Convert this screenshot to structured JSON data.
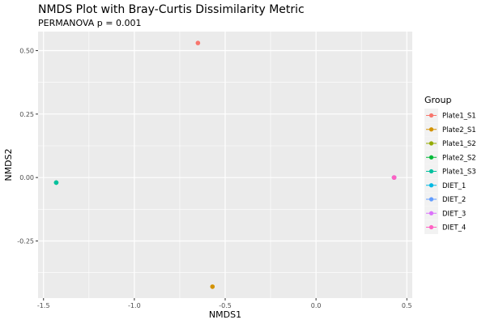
{
  "chart_data": {
    "type": "scatter",
    "title": "NMDS Plot with Bray-Curtis Dissimilarity Metric",
    "subtitle": "PERMANOVA p = 0.001",
    "xlabel": "NMDS1",
    "ylabel": "NMDS2",
    "xlim": [
      -1.53,
      0.53
    ],
    "ylim": [
      -0.475,
      0.575
    ],
    "x_ticks": [
      -1.5,
      -1.0,
      -0.5,
      0.0,
      0.5
    ],
    "x_tick_labels": [
      "-1.5",
      "-1.0",
      "-0.5",
      "0.0",
      "0.5"
    ],
    "y_ticks": [
      -0.25,
      0.0,
      0.25,
      0.5
    ],
    "y_tick_labels": [
      "-0.25",
      "0.00",
      "0.25",
      "0.50"
    ],
    "grid": true,
    "legend": {
      "title": "Group",
      "placement": "right"
    },
    "series": [
      {
        "name": "Plate1_S1",
        "color": "#F8766D",
        "x": -0.65,
        "y": 0.53
      },
      {
        "name": "Plate2_S1",
        "color": "#D39200",
        "x": -0.57,
        "y": -0.43
      },
      {
        "name": "Plate1_S2",
        "color": "#93AA00",
        "x": 0.43,
        "y": 0.0
      },
      {
        "name": "Plate2_S2",
        "color": "#00BA38",
        "x": -1.43,
        "y": -0.02
      },
      {
        "name": "Plate1_S3",
        "color": "#00C19F",
        "x": -1.43,
        "y": -0.02
      },
      {
        "name": "DIET_1",
        "color": "#00B9E3",
        "x": 0.43,
        "y": 0.0
      },
      {
        "name": "DIET_2",
        "color": "#619CFF",
        "x": 0.43,
        "y": 0.0
      },
      {
        "name": "DIET_3",
        "color": "#DB72FB",
        "x": 0.43,
        "y": 0.0
      },
      {
        "name": "DIET_4",
        "color": "#FF61C3",
        "x": 0.43,
        "y": 0.0
      }
    ]
  }
}
